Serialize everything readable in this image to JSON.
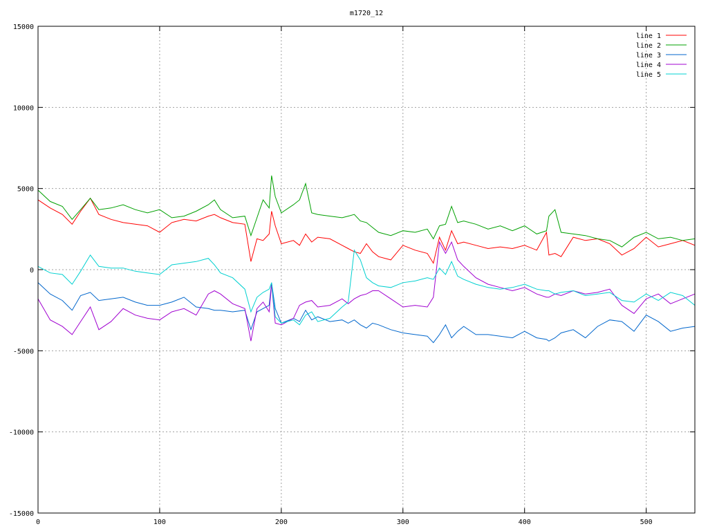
{
  "chart_data": {
    "type": "line",
    "title": "m1720_12",
    "xlabel": "",
    "ylabel": "",
    "xlim": [
      0,
      540
    ],
    "ylim": [
      -15000,
      15000
    ],
    "x_ticks": [
      0,
      100,
      200,
      300,
      400,
      500
    ],
    "y_ticks": [
      -15000,
      -10000,
      -5000,
      0,
      5000,
      10000,
      15000
    ],
    "grid": true,
    "legend_position": "top-right",
    "x": [
      0,
      10,
      20,
      28,
      35,
      43,
      50,
      60,
      70,
      80,
      90,
      100,
      110,
      120,
      130,
      140,
      145,
      150,
      160,
      170,
      175,
      180,
      185,
      190,
      192,
      195,
      200,
      210,
      215,
      220,
      225,
      230,
      240,
      250,
      255,
      260,
      265,
      270,
      275,
      280,
      290,
      300,
      310,
      320,
      325,
      330,
      335,
      340,
      345,
      350,
      360,
      370,
      380,
      390,
      400,
      410,
      418,
      420,
      425,
      430,
      440,
      450,
      460,
      470,
      480,
      490,
      500,
      510,
      520,
      530,
      540
    ],
    "series": [
      {
        "name": "line 1",
        "color": "#ff0000",
        "values": [
          4300,
          3800,
          3400,
          2800,
          3600,
          4400,
          3400,
          3100,
          2900,
          2800,
          2700,
          2300,
          2900,
          3100,
          3000,
          3300,
          3400,
          3200,
          2900,
          2800,
          500,
          1900,
          1800,
          2200,
          3600,
          2700,
          1600,
          1800,
          1500,
          2200,
          1700,
          2000,
          1900,
          1500,
          1300,
          1100,
          1000,
          1600,
          1100,
          800,
          600,
          1500,
          1200,
          1000,
          400,
          2000,
          1200,
          2400,
          1600,
          1700,
          1500,
          1300,
          1400,
          1300,
          1500,
          1200,
          2300,
          900,
          1000,
          800,
          2000,
          1800,
          1900,
          1600,
          900,
          1300,
          2000,
          1400,
          1600,
          1800,
          1500
        ]
      },
      {
        "name": "line 2",
        "color": "#00a000",
        "values": [
          4900,
          4200,
          3900,
          3100,
          3700,
          4400,
          3700,
          3800,
          4000,
          3700,
          3500,
          3700,
          3200,
          3300,
          3600,
          4000,
          4300,
          3700,
          3200,
          3300,
          2100,
          3200,
          4300,
          3800,
          5800,
          4500,
          3500,
          4000,
          4300,
          5300,
          3500,
          3400,
          3300,
          3200,
          3300,
          3400,
          3000,
          2900,
          2600,
          2300,
          2100,
          2400,
          2300,
          2500,
          1900,
          2700,
          2800,
          3900,
          2900,
          3000,
          2800,
          2500,
          2700,
          2400,
          2700,
          2200,
          2400,
          3300,
          3700,
          2300,
          2200,
          2100,
          1900,
          1800,
          1400,
          2000,
          2300,
          1900,
          2000,
          1800,
          1900
        ]
      },
      {
        "name": "line 3",
        "color": "#0066cc",
        "values": [
          -800,
          -1500,
          -1900,
          -2500,
          -1600,
          -1400,
          -1900,
          -1800,
          -1700,
          -2000,
          -2200,
          -2200,
          -2000,
          -1700,
          -2300,
          -2400,
          -2500,
          -2500,
          -2600,
          -2500,
          -3700,
          -2600,
          -2400,
          -2200,
          -800,
          -2400,
          -3300,
          -3000,
          -3200,
          -2500,
          -3100,
          -2900,
          -3200,
          -3100,
          -3300,
          -3100,
          -3400,
          -3600,
          -3300,
          -3400,
          -3700,
          -3900,
          -4000,
          -4100,
          -4500,
          -4000,
          -3400,
          -4200,
          -3800,
          -3500,
          -4000,
          -4000,
          -4100,
          -4200,
          -3800,
          -4200,
          -4300,
          -4400,
          -4200,
          -3900,
          -3700,
          -4200,
          -3500,
          -3100,
          -3200,
          -3800,
          -2800,
          -3200,
          -3800,
          -3600,
          -3500
        ]
      },
      {
        "name": "line 4",
        "color": "#a000d0",
        "values": [
          -1800,
          -3100,
          -3500,
          -4000,
          -3200,
          -2300,
          -3700,
          -3200,
          -2400,
          -2800,
          -3000,
          -3100,
          -2600,
          -2400,
          -2800,
          -1500,
          -1300,
          -1500,
          -2100,
          -2400,
          -4400,
          -2400,
          -2000,
          -2600,
          -900,
          -3300,
          -3400,
          -3000,
          -2200,
          -2000,
          -1900,
          -2300,
          -2200,
          -1800,
          -2100,
          -1800,
          -1600,
          -1500,
          -1300,
          -1300,
          -1800,
          -2300,
          -2200,
          -2300,
          -1700,
          1700,
          1000,
          1700,
          600,
          200,
          -500,
          -900,
          -1100,
          -1300,
          -1100,
          -1500,
          -1700,
          -1700,
          -1500,
          -1600,
          -1300,
          -1500,
          -1400,
          -1200,
          -2200,
          -2700,
          -1800,
          -1500,
          -2100,
          -1800,
          -1500
        ]
      },
      {
        "name": "line 5",
        "color": "#00d0d0",
        "values": [
          200,
          -200,
          -300,
          -900,
          -100,
          900,
          200,
          100,
          100,
          -100,
          -200,
          -300,
          300,
          400,
          500,
          700,
          300,
          -200,
          -500,
          -1200,
          -2600,
          -1700,
          -1400,
          -1200,
          -800,
          -2900,
          -3300,
          -3100,
          -3400,
          -2800,
          -2600,
          -3200,
          -3000,
          -2300,
          -2000,
          1200,
          600,
          -500,
          -800,
          -1000,
          -1100,
          -800,
          -700,
          -500,
          -600,
          100,
          -300,
          500,
          -400,
          -600,
          -900,
          -1100,
          -1200,
          -1100,
          -900,
          -1200,
          -1300,
          -1300,
          -1500,
          -1400,
          -1300,
          -1600,
          -1500,
          -1400,
          -1900,
          -2000,
          -1500,
          -1900,
          -1400,
          -1600,
          -2200
        ]
      }
    ]
  }
}
